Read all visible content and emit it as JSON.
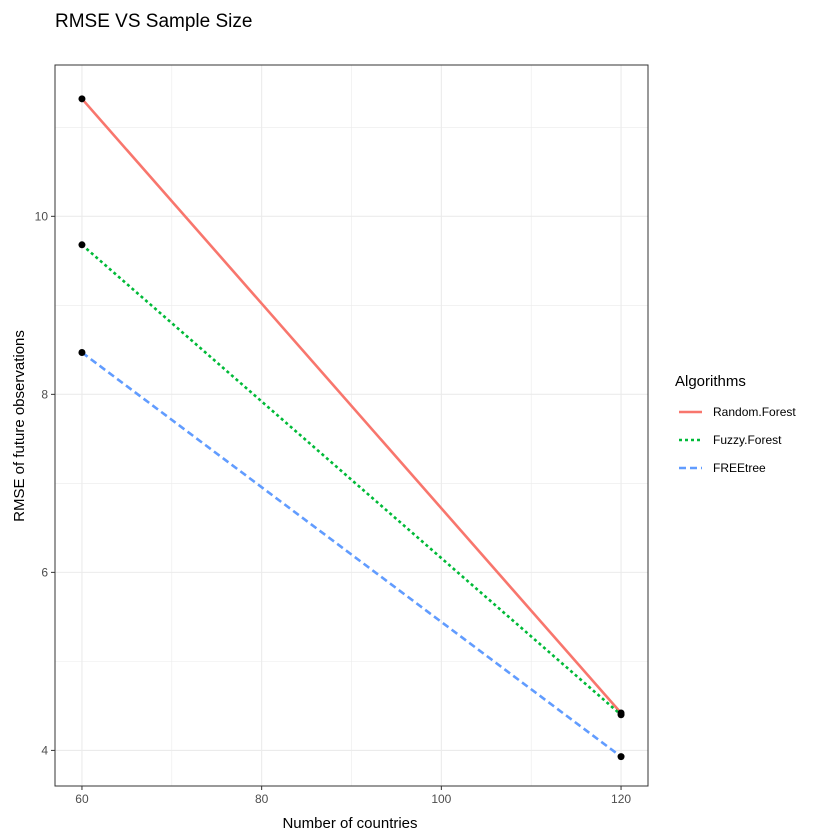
{
  "chart_data": {
    "type": "line",
    "title": "RMSE VS Sample Size",
    "xlabel": "Number of countries",
    "ylabel": "RMSE of future observations",
    "x": [
      60,
      120
    ],
    "xlim": [
      57,
      123
    ],
    "ylim": [
      3.6,
      11.7
    ],
    "xticks": [
      60,
      80,
      100,
      120
    ],
    "xminor": [
      70,
      90,
      110
    ],
    "yticks": [
      4,
      6,
      8,
      10
    ],
    "yminor": [
      5,
      7,
      9,
      11
    ],
    "grid": true,
    "legend": {
      "title": "Algorithms",
      "placement": "right"
    },
    "series": [
      {
        "name": "Random.Forest",
        "values": [
          11.32,
          4.42
        ],
        "color": "#F8766D",
        "dash": "solid"
      },
      {
        "name": "Fuzzy.Forest",
        "values": [
          9.68,
          4.4
        ],
        "color": "#00BA38",
        "dash": "dotted"
      },
      {
        "name": "FREEtree",
        "values": [
          8.47,
          3.93
        ],
        "color": "#619CFF",
        "dash": "dashed"
      }
    ]
  }
}
